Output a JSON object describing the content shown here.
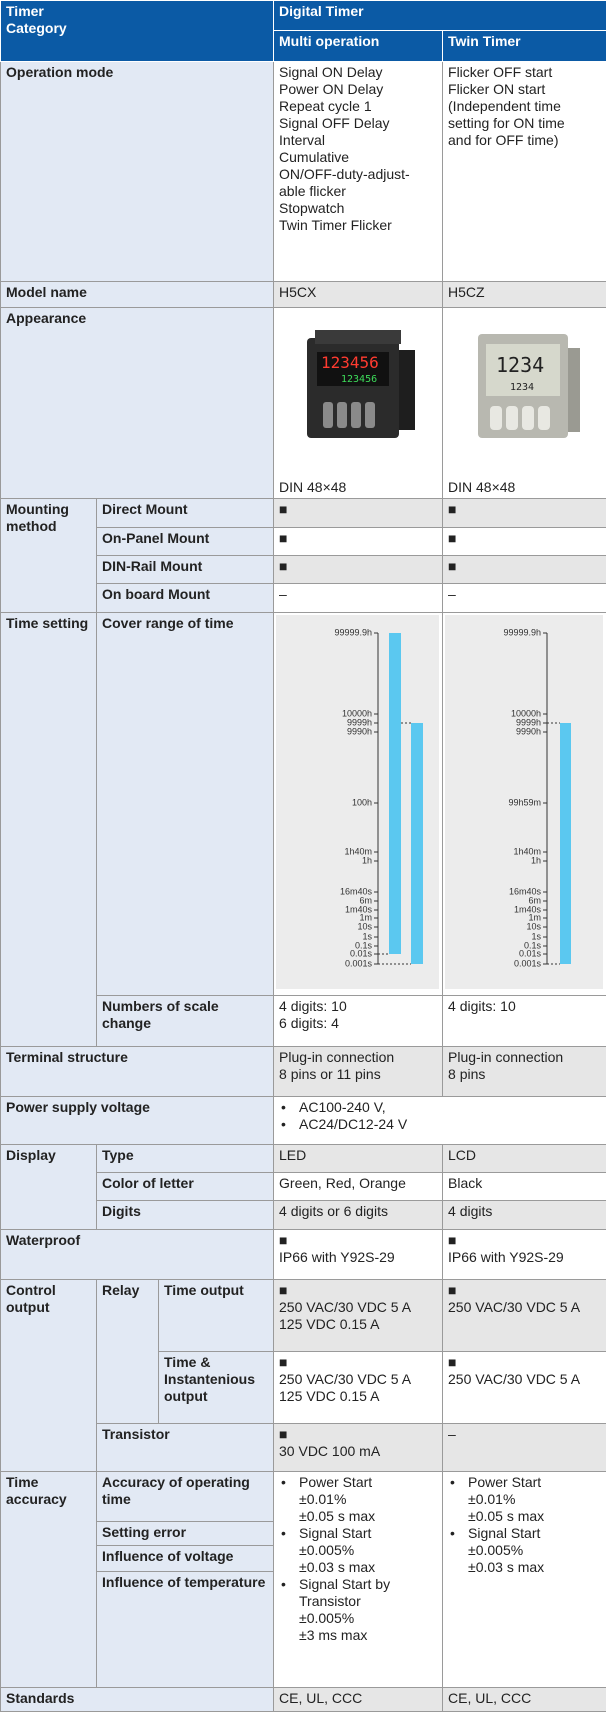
{
  "header": {
    "category": [
      "Timer",
      "Category"
    ],
    "group": "Digital Timer",
    "products": [
      "Multi operation",
      "Twin Timer"
    ]
  },
  "operation_mode": {
    "label": "Operation mode",
    "values": [
      [
        "Signal ON Delay",
        "Power ON Delay",
        "Repeat cycle 1",
        "Signal OFF Delay",
        "Interval",
        "Cumulative",
        "ON/OFF-duty-adjust-",
        "able flicker",
        "Stopwatch",
        "Twin Timer Flicker"
      ],
      [
        "Flicker OFF start",
        "Flicker ON start",
        "(Independent time",
        "setting for ON time",
        "and for OFF time)"
      ]
    ]
  },
  "model_name": {
    "label": "Model name",
    "values": [
      "H5CX",
      "H5CZ"
    ]
  },
  "appearance": {
    "label": "Appearance",
    "values": [
      "DIN 48×48",
      "DIN 48×48"
    ]
  },
  "mounting": {
    "label": "Mounting method",
    "items": [
      {
        "label": "Direct Mount",
        "values": [
          "■",
          "■"
        ]
      },
      {
        "label": "On-Panel Mount",
        "values": [
          "■",
          "■"
        ]
      },
      {
        "label": "DIN-Rail Mount",
        "values": [
          "■",
          "■"
        ]
      },
      {
        "label": "On board Mount",
        "values": [
          "–",
          "–"
        ]
      }
    ]
  },
  "time_setting": {
    "label": "Time setting",
    "cover_range": {
      "label": "Cover range of time",
      "scales": [
        [
          "99999.9h",
          "10000h",
          "9999h",
          "9990h",
          "100h",
          "1h40m",
          "1h",
          "16m40s",
          "6m",
          "1m40s",
          "1m",
          "10s",
          "1s",
          "0.1s",
          "0.01s",
          "0.001s"
        ],
        [
          "99999.9h",
          "10000h",
          "9999h",
          "9990h",
          "99h59m",
          "1h40m",
          "1h",
          "16m40s",
          "6m",
          "1m40s",
          "1m",
          "10s",
          "1s",
          "0.1s",
          "0.01s",
          "0.001s"
        ]
      ]
    },
    "scale_change": {
      "label": "Numbers of scale change",
      "values": [
        [
          "4 digits: 10",
          "6 digits: 4"
        ],
        [
          "4 digits: 10"
        ]
      ]
    }
  },
  "terminal": {
    "label": "Terminal structure",
    "values": [
      [
        "Plug-in connection",
        "8 pins or 11 pins"
      ],
      [
        "Plug-in connection",
        "8 pins"
      ]
    ]
  },
  "power_supply": {
    "label": "Power supply voltage",
    "values": [
      "AC100-240 V,",
      "AC24/DC12-24 V"
    ]
  },
  "display": {
    "label": "Display",
    "items": [
      {
        "label": "Type",
        "values": [
          "LED",
          "LCD"
        ]
      },
      {
        "label": "Color of letter",
        "values": [
          "Green, Red, Orange",
          "Black"
        ]
      },
      {
        "label": "Digits",
        "values": [
          "4 digits or 6 digits",
          "4 digits"
        ]
      }
    ]
  },
  "waterproof": {
    "label": "Waterproof",
    "values": [
      [
        "■",
        "IP66 with Y92S-29"
      ],
      [
        "■",
        "IP66 with Y92S-29"
      ]
    ]
  },
  "control_output": {
    "label": "Control output",
    "relay": {
      "label": "Relay",
      "items": [
        {
          "label": "Time output",
          "values": [
            [
              "■",
              "250 VAC/30 VDC 5 A",
              "125 VDC 0.15 A"
            ],
            [
              "■",
              "250 VAC/30 VDC 5 A"
            ]
          ]
        },
        {
          "label": "Time & Instantenious output",
          "values": [
            [
              "■",
              "250 VAC/30 VDC 5 A",
              "125 VDC 0.15 A"
            ],
            [
              "■",
              "250 VAC/30 VDC 5 A"
            ]
          ]
        }
      ]
    },
    "transistor": {
      "label": "Transistor",
      "values": [
        [
          "■",
          "30 VDC 100 mA"
        ],
        [
          "–"
        ]
      ]
    }
  },
  "time_accuracy": {
    "label": "Time accuracy",
    "items": [
      "Accuracy of operating time",
      "Setting error",
      "Influence of voltage",
      "Influence of temperature"
    ],
    "values": [
      [
        {
          "title": "Power Start",
          "lines": [
            "±0.01%",
            "±0.05 s max"
          ]
        },
        {
          "title": "Signal Start",
          "lines": [
            "±0.005%",
            "±0.03 s max"
          ]
        },
        {
          "title": "Signal Start by Transistor",
          "lines": [
            "±0.005%",
            "±3 ms max"
          ]
        }
      ],
      [
        {
          "title": "Power Start",
          "lines": [
            "±0.01%",
            "±0.05 s max"
          ]
        },
        {
          "title": "Signal Start",
          "lines": [
            "±0.005%",
            "±0.03 s max"
          ]
        }
      ]
    ]
  },
  "standards": {
    "label": "Standards",
    "values": [
      "CE, UL, CCC",
      "CE, UL, CCC"
    ]
  }
}
